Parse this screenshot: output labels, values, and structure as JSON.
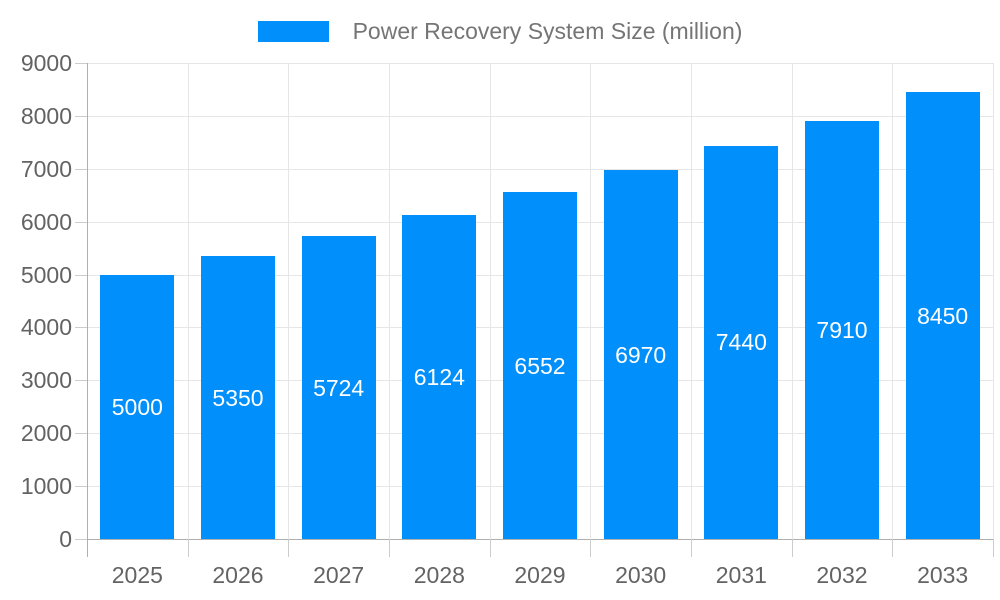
{
  "legend": {
    "label": "Power Recovery System Size (million)"
  },
  "colors": {
    "bar": "#008FFB",
    "grid": "#e6e6e6",
    "axis": "#b0b0b0",
    "tick": "#cccccc",
    "tick_label": "#636363",
    "legend_text": "#757575",
    "bar_label": "#ffffff",
    "background": "#ffffff"
  },
  "chart_data": {
    "type": "bar",
    "title": "Power Recovery System Size (million)",
    "categories": [
      "2025",
      "2026",
      "2027",
      "2028",
      "2029",
      "2030",
      "2031",
      "2032",
      "2033"
    ],
    "values": [
      5000,
      5350,
      5724,
      6124,
      6552,
      6970,
      7440,
      7910,
      8450
    ],
    "bar_value_labels": [
      "5000",
      "5350",
      "5724",
      "6124",
      "6552",
      "6970",
      "7440",
      "7910",
      "8450"
    ],
    "y_tick_labels": [
      "0",
      "1000",
      "2000",
      "3000",
      "4000",
      "5000",
      "6000",
      "7000",
      "8000",
      "9000"
    ],
    "xlabel": "",
    "ylabel": "",
    "ylim": [
      0,
      9000
    ],
    "ytick_step": 1000,
    "grid": true,
    "legend_position": "top",
    "value_labels_inside_bars": true
  }
}
